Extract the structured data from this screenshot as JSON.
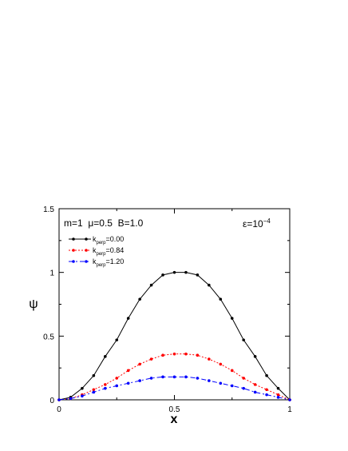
{
  "chart_data": {
    "type": "line",
    "title": "",
    "xlabel": "x",
    "ylabel": "ψ",
    "xlim": [
      0,
      1
    ],
    "ylim": [
      0,
      1.5
    ],
    "xticks": [
      0,
      0.5,
      1
    ],
    "xtick_labels": [
      "0",
      "0.5",
      "1"
    ],
    "yticks": [
      0,
      0.5,
      1,
      1.5
    ],
    "ytick_labels": [
      "0",
      "0.5",
      "1",
      "1.5"
    ],
    "grid": false,
    "legend_position": "top-left",
    "annotation_params": "m=1  μ=0.5  B=1.0",
    "annotation_eps": "ε=10",
    "annotation_eps_exp": "−4",
    "x": [
      0,
      0.05,
      0.1,
      0.15,
      0.2,
      0.25,
      0.3,
      0.35,
      0.4,
      0.45,
      0.5,
      0.55,
      0.6,
      0.65,
      0.7,
      0.75,
      0.8,
      0.85,
      0.9,
      0.95,
      1.0
    ],
    "series": [
      {
        "legend_base": "k",
        "legend_sub": "perp",
        "legend_value": "=0.00",
        "color": "#000000",
        "dash": "",
        "values": [
          0,
          0.02,
          0.09,
          0.19,
          0.34,
          0.47,
          0.64,
          0.79,
          0.9,
          0.98,
          1.0,
          1.0,
          0.98,
          0.9,
          0.79,
          0.64,
          0.47,
          0.34,
          0.19,
          0.09,
          0.0
        ]
      },
      {
        "legend_base": "k",
        "legend_sub": "perp",
        "legend_value": "=0.84",
        "color": "#ff0000",
        "dash": "2,2",
        "values": [
          0,
          0.01,
          0.04,
          0.08,
          0.12,
          0.17,
          0.23,
          0.28,
          0.32,
          0.35,
          0.36,
          0.36,
          0.35,
          0.32,
          0.28,
          0.23,
          0.17,
          0.12,
          0.08,
          0.04,
          0.0
        ]
      },
      {
        "legend_base": "k",
        "legend_sub": "perp",
        "legend_value": "=1.20",
        "color": "#0000ff",
        "dash": "6,3,2,3",
        "values": [
          0,
          0.01,
          0.03,
          0.06,
          0.09,
          0.11,
          0.13,
          0.15,
          0.17,
          0.18,
          0.18,
          0.18,
          0.17,
          0.15,
          0.13,
          0.11,
          0.09,
          0.06,
          0.04,
          0.02,
          0.0
        ]
      }
    ]
  }
}
